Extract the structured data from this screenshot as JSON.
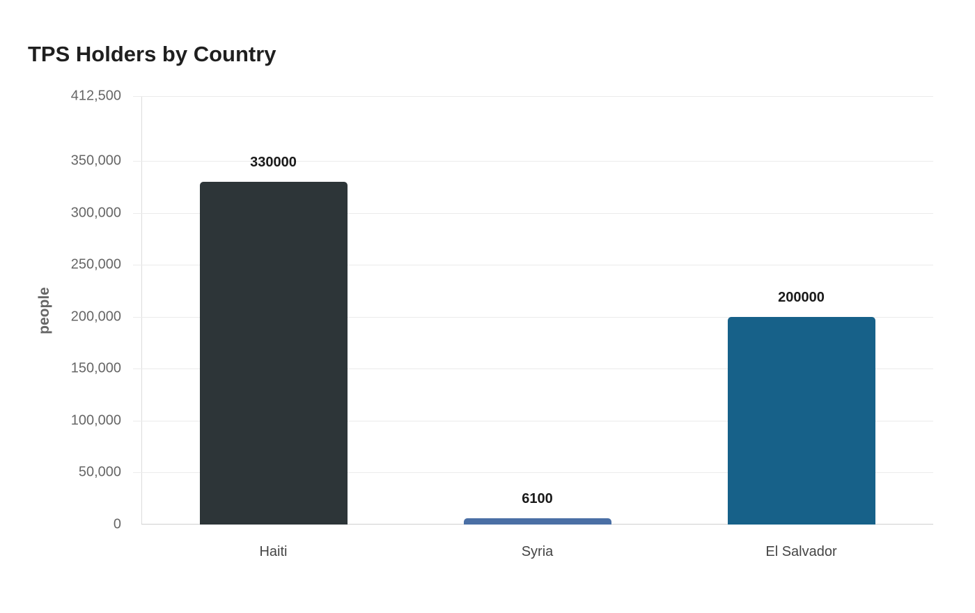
{
  "title": "TPS Holders by Country",
  "y_axis": {
    "label": "people",
    "ticks": [
      {
        "value": 0,
        "label": "0"
      },
      {
        "value": 50000,
        "label": "50,000"
      },
      {
        "value": 100000,
        "label": "100,000"
      },
      {
        "value": 150000,
        "label": "150,000"
      },
      {
        "value": 200000,
        "label": "200,000"
      },
      {
        "value": 250000,
        "label": "250,000"
      },
      {
        "value": 300000,
        "label": "300,000"
      },
      {
        "value": 350000,
        "label": "350,000"
      },
      {
        "value": 412500,
        "label": "412,500"
      }
    ]
  },
  "bars": [
    {
      "category": "Haiti",
      "value": 330000,
      "value_label": "330000",
      "color": "#2d3538"
    },
    {
      "category": "Syria",
      "value": 6100,
      "value_label": "6100",
      "color": "#4a6fa5"
    },
    {
      "category": "El Salvador",
      "value": 200000,
      "value_label": "200000",
      "color": "#176189"
    }
  ],
  "chart_data": {
    "type": "bar",
    "title": "TPS Holders by Country",
    "categories": [
      "Haiti",
      "Syria",
      "El Salvador"
    ],
    "values": [
      330000,
      6100,
      200000
    ],
    "xlabel": "",
    "ylabel": "people",
    "ylim": [
      0,
      412500
    ],
    "yticks": [
      0,
      50000,
      100000,
      150000,
      200000,
      250000,
      300000,
      350000,
      412500
    ],
    "grid": true,
    "legend": null,
    "data_labels": true,
    "colors": [
      "#2d3538",
      "#4a6fa5",
      "#176189"
    ]
  }
}
